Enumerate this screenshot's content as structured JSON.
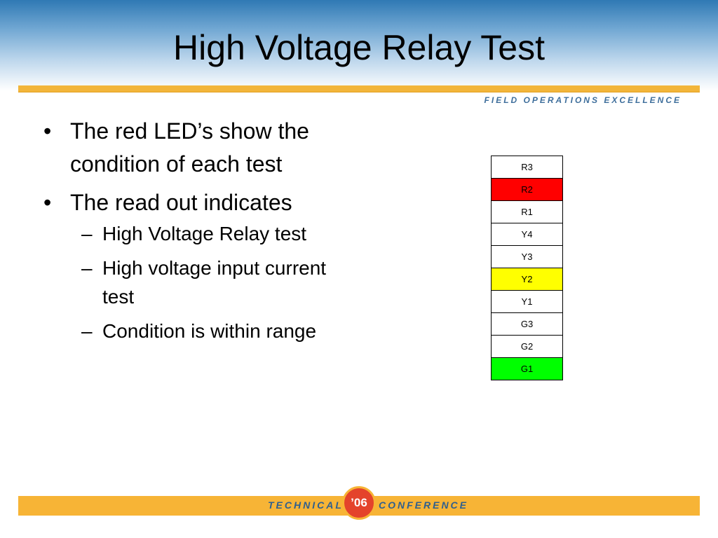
{
  "slide": {
    "title": "High Voltage Relay Test",
    "tagline": "FIELD OPERATIONS EXCELLENCE"
  },
  "bullets": [
    {
      "mark": "•",
      "text": "The red LED’s show the condition of each test"
    },
    {
      "mark": "•",
      "text": "The read out indicates",
      "sub": [
        {
          "mark": "–",
          "text": "High Voltage Relay test"
        },
        {
          "mark": "–",
          "text": "High voltage input current test"
        },
        {
          "mark": "–",
          "text": "Condition is within range"
        }
      ]
    }
  ],
  "led_table": {
    "rows": [
      {
        "label": "R3",
        "color": "#ffffff"
      },
      {
        "label": "R2",
        "color": "#ff0000"
      },
      {
        "label": "R1",
        "color": "#ffffff"
      },
      {
        "label": "Y4",
        "color": "#ffffff"
      },
      {
        "label": "Y3",
        "color": "#ffffff"
      },
      {
        "label": "Y2",
        "color": "#ffff00"
      },
      {
        "label": "Y1",
        "color": "#ffffff"
      },
      {
        "label": "G3",
        "color": "#ffffff"
      },
      {
        "label": "G2",
        "color": "#ffffff"
      },
      {
        "label": "G1",
        "color": "#00ff00"
      }
    ]
  },
  "footer": {
    "left_text": "TECHNICAL",
    "badge_text": "’06",
    "right_text": "CONFERENCE"
  }
}
